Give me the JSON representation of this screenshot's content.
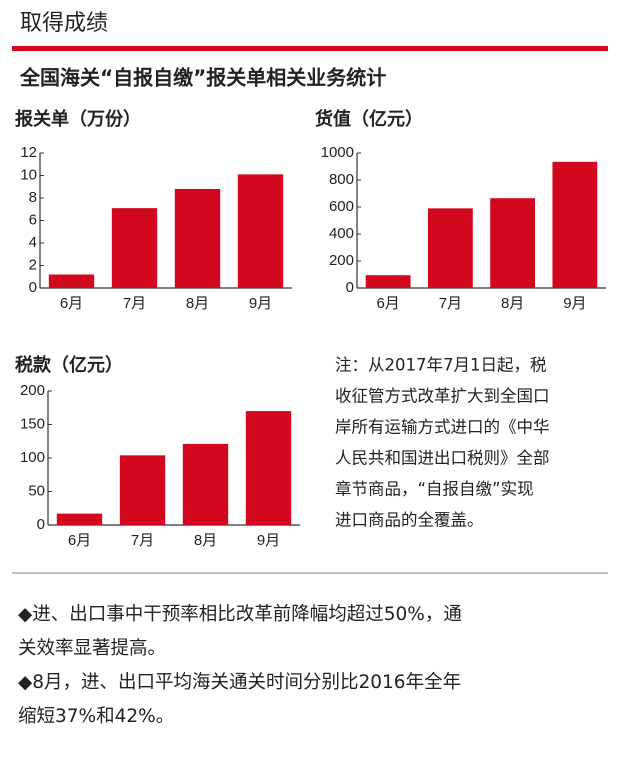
{
  "header": "取得成绩",
  "title": "全国海关“自报自缴”报关单相关业务统计",
  "chart_data": [
    {
      "type": "bar",
      "title": "报关单（万份）",
      "categories": [
        "6月",
        "7月",
        "8月",
        "9月"
      ],
      "values": [
        1.2,
        7.1,
        8.8,
        10.1
      ],
      "color": "#d2091e",
      "ylim": [
        0,
        12
      ],
      "yticks": [
        0,
        2,
        4,
        6,
        8,
        10,
        12
      ],
      "grid": false
    },
    {
      "type": "bar",
      "title": "货值（亿元）",
      "categories": [
        "6月",
        "7月",
        "8月",
        "9月"
      ],
      "values": [
        95,
        590,
        665,
        935
      ],
      "color": "#d2091e",
      "ylim": [
        0,
        1000
      ],
      "yticks": [
        0,
        200,
        400,
        600,
        800,
        1000
      ],
      "grid": false
    },
    {
      "type": "bar",
      "title": "税款（亿元）",
      "categories": [
        "6月",
        "7月",
        "8月",
        "9月"
      ],
      "values": [
        17,
        104,
        121,
        170
      ],
      "color": "#d2091e",
      "ylim": [
        0,
        200
      ],
      "yticks": [
        0,
        50,
        100,
        150,
        200
      ],
      "grid": false
    }
  ],
  "note": [
    "注：从2017年7月1日起，税",
    "收征管方式改革扩大到全国口",
    "岸所有运输方式进口的《中华",
    "人民共和国进出口税则》全部",
    "章节商品，“自报自缴”实现",
    "进口商品的全覆盖。"
  ],
  "bullets": [
    "◆进、出口事中干预率相比改革前降幅均超过50%，通",
    "关效率显著提高。",
    "◆8月，进、出口平均海关通关时间分别比2016年全年",
    "缩短37%和42%。"
  ]
}
